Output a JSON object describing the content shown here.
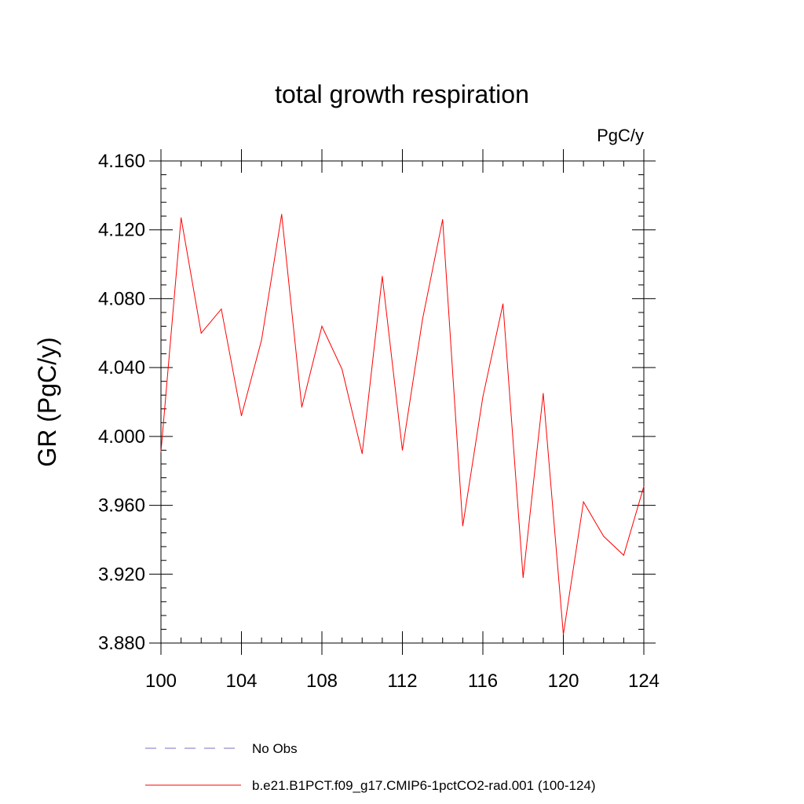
{
  "chart_data": {
    "type": "line",
    "title": "total growth respiration",
    "units_label": "PgC/y",
    "xlabel": "",
    "ylabel": "GR  (PgC/y)",
    "xlim": [
      100,
      124
    ],
    "ylim": [
      3.88,
      4.16
    ],
    "x_ticks": [
      100,
      104,
      108,
      112,
      116,
      120,
      124
    ],
    "x_tick_labels": [
      "100",
      "104",
      "108",
      "112",
      "116",
      "120",
      "124"
    ],
    "y_ticks": [
      3.88,
      3.92,
      3.96,
      4.0,
      4.04,
      4.08,
      4.12,
      4.16
    ],
    "y_tick_labels": [
      "3.880",
      "3.920",
      "3.960",
      "4.000",
      "4.040",
      "4.080",
      "4.120",
      "4.160"
    ],
    "x_minor_step": 1,
    "y_minor_step": 0.008,
    "grid": false,
    "legend_position": "bottom",
    "series": [
      {
        "name": "b.e21.B1PCT.f09_g17.CMIP6-1pctCO2-rad.001 (100-124)",
        "color": "#ff0000",
        "style": "solid",
        "x": [
          100,
          101,
          102,
          103,
          104,
          105,
          106,
          107,
          108,
          109,
          110,
          111,
          112,
          113,
          114,
          115,
          116,
          117,
          118,
          119,
          120,
          121,
          122,
          123,
          124
        ],
        "values": [
          3.991,
          4.127,
          4.06,
          4.074,
          4.012,
          4.056,
          4.129,
          4.017,
          4.064,
          4.039,
          3.99,
          4.093,
          3.992,
          4.068,
          4.126,
          3.948,
          4.023,
          4.077,
          3.918,
          4.025,
          3.885,
          3.962,
          3.942,
          3.931,
          3.971
        ]
      }
    ],
    "legend": [
      {
        "label": "No Obs",
        "color": "#7b6fbf",
        "style": "dashed"
      },
      {
        "label": "b.e21.B1PCT.f09_g17.CMIP6-1pctCO2-rad.001 (100-124)",
        "color": "#ff0000",
        "style": "solid"
      }
    ]
  }
}
